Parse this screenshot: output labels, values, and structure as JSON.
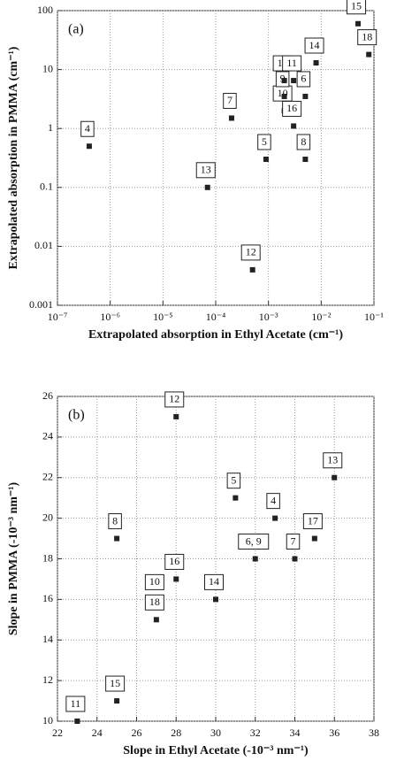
{
  "chart_data": [
    {
      "type": "scatter",
      "annotation": "(a)",
      "x_label": "Extrapolated absorption in Ethyl Acetate (cm⁻¹)",
      "y_label": "Extrapolated absorption in PMMA (cm⁻¹)",
      "xscale": "log",
      "yscale": "log",
      "grid": true,
      "color": "#222222",
      "xlim": [
        1e-07,
        0.1
      ],
      "ylim": [
        0.001,
        100
      ],
      "xticks": [
        {
          "value": 1e-07,
          "label": "10⁻⁷"
        },
        {
          "value": 1e-06,
          "label": "10⁻⁶"
        },
        {
          "value": 1e-05,
          "label": "10⁻⁵"
        },
        {
          "value": 0.0001,
          "label": "10⁻⁴"
        },
        {
          "value": 0.001,
          "label": "10⁻³"
        },
        {
          "value": 0.01,
          "label": "10⁻²"
        },
        {
          "value": 0.1,
          "label": "10⁻¹"
        }
      ],
      "yticks": [
        0.001,
        0.01,
        0.1,
        1,
        10,
        100
      ],
      "point_labels": [
        "4",
        "13",
        "12",
        "7",
        "5",
        "10",
        "9",
        "17",
        "11",
        "16",
        "8",
        "6",
        "14",
        "15",
        "18"
      ],
      "x": [
        4e-07,
        7e-05,
        0.0005,
        0.0002,
        0.0009,
        0.002,
        0.002,
        0.002,
        0.003,
        0.003,
        0.005,
        0.005,
        0.008,
        0.05,
        0.08
      ],
      "values": [
        0.5,
        0.1,
        0.004,
        1.5,
        0.3,
        2,
        3.5,
        6.5,
        6.5,
        1.1,
        0.3,
        3.5,
        13,
        60,
        18
      ]
    },
    {
      "type": "scatter",
      "annotation": "(b)",
      "x_label": "Slope in Ethyl Acetate (-10⁻³ nm⁻¹)",
      "y_label": "Slope in PMMA (-10⁻³ nm⁻¹)",
      "xscale": "linear",
      "yscale": "linear",
      "grid": true,
      "color": "#222222",
      "xlim": [
        22,
        38
      ],
      "ylim": [
        10,
        26
      ],
      "xticks": [
        22,
        24,
        26,
        28,
        30,
        32,
        34,
        36,
        38
      ],
      "yticks": [
        10,
        12,
        14,
        16,
        18,
        20,
        22,
        24,
        26
      ],
      "point_labels": [
        "11",
        "15",
        "8",
        "10",
        "18",
        "16",
        "12",
        "14",
        "5",
        "6, 9",
        "4",
        "7",
        "17",
        "13"
      ],
      "x": [
        23,
        25,
        25,
        27,
        27,
        28,
        28,
        30,
        31,
        32,
        33,
        34,
        35,
        36
      ],
      "values": [
        10,
        11,
        19,
        16,
        15,
        17,
        25,
        16,
        21,
        18,
        20,
        18,
        19,
        22
      ]
    }
  ]
}
